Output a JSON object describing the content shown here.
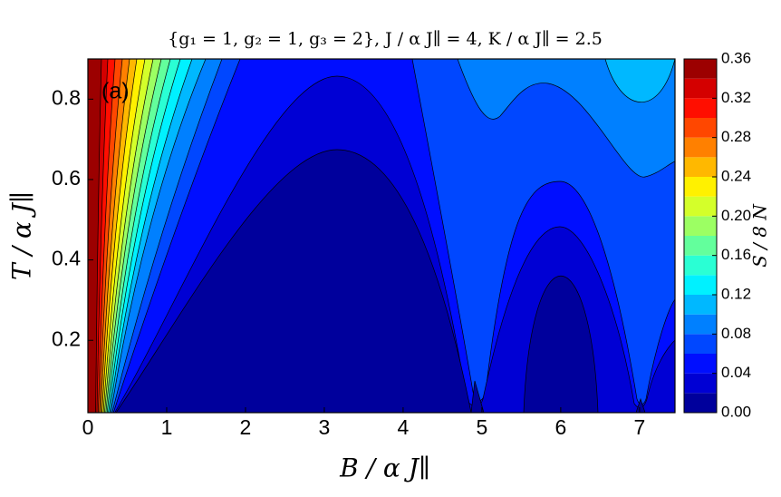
{
  "chart_data": {
    "type": "contour",
    "title": "{g₁ = 1,  g₂ = 1,  g₃ = 2},  J / α J∥ = 4,  K / α J∥ = 2.5",
    "panel_label": "(a)",
    "x_label": "B / α J∥",
    "y_label": "T / α J∥",
    "colorbar_label": "S / 8 N",
    "xlim": [
      0,
      7.45
    ],
    "ylim": [
      0.02,
      0.9
    ],
    "xticks": [
      0,
      1,
      2,
      3,
      4,
      5,
      6,
      7
    ],
    "yticks": [
      0.2,
      0.4,
      0.6,
      0.8
    ],
    "levels": [
      0,
      0.02,
      0.04,
      0.06,
      0.08,
      0.1,
      0.12,
      0.14,
      0.16,
      0.18,
      0.2,
      0.22,
      0.24,
      0.26,
      0.28,
      0.3,
      0.32,
      0.34,
      0.36
    ],
    "colors": [
      "#00009c",
      "#0000d4",
      "#000eff",
      "#0047ff",
      "#0080ff",
      "#00b8ff",
      "#00f1ff",
      "#2affd4",
      "#63ff9c",
      "#9cff63",
      "#d4ff2a",
      "#fff100",
      "#ffb800",
      "#ff8000",
      "#ff4700",
      "#ff0e00",
      "#d40000",
      "#9c0000"
    ],
    "colorbar_ticks": [
      {
        "value": 0,
        "label": "0.00"
      },
      {
        "value": 0.04,
        "label": "0.04"
      },
      {
        "value": 0.08,
        "label": "0.08"
      },
      {
        "value": 0.12,
        "label": "0.12"
      },
      {
        "value": 0.16,
        "label": "0.16"
      },
      {
        "value": 0.2,
        "label": "0.20"
      },
      {
        "value": 0.24,
        "label": "0.24"
      },
      {
        "value": 0.28,
        "label": "0.28"
      },
      {
        "value": 0.32,
        "label": "0.32"
      },
      {
        "value": 0.36,
        "label": "0.36"
      }
    ]
  }
}
